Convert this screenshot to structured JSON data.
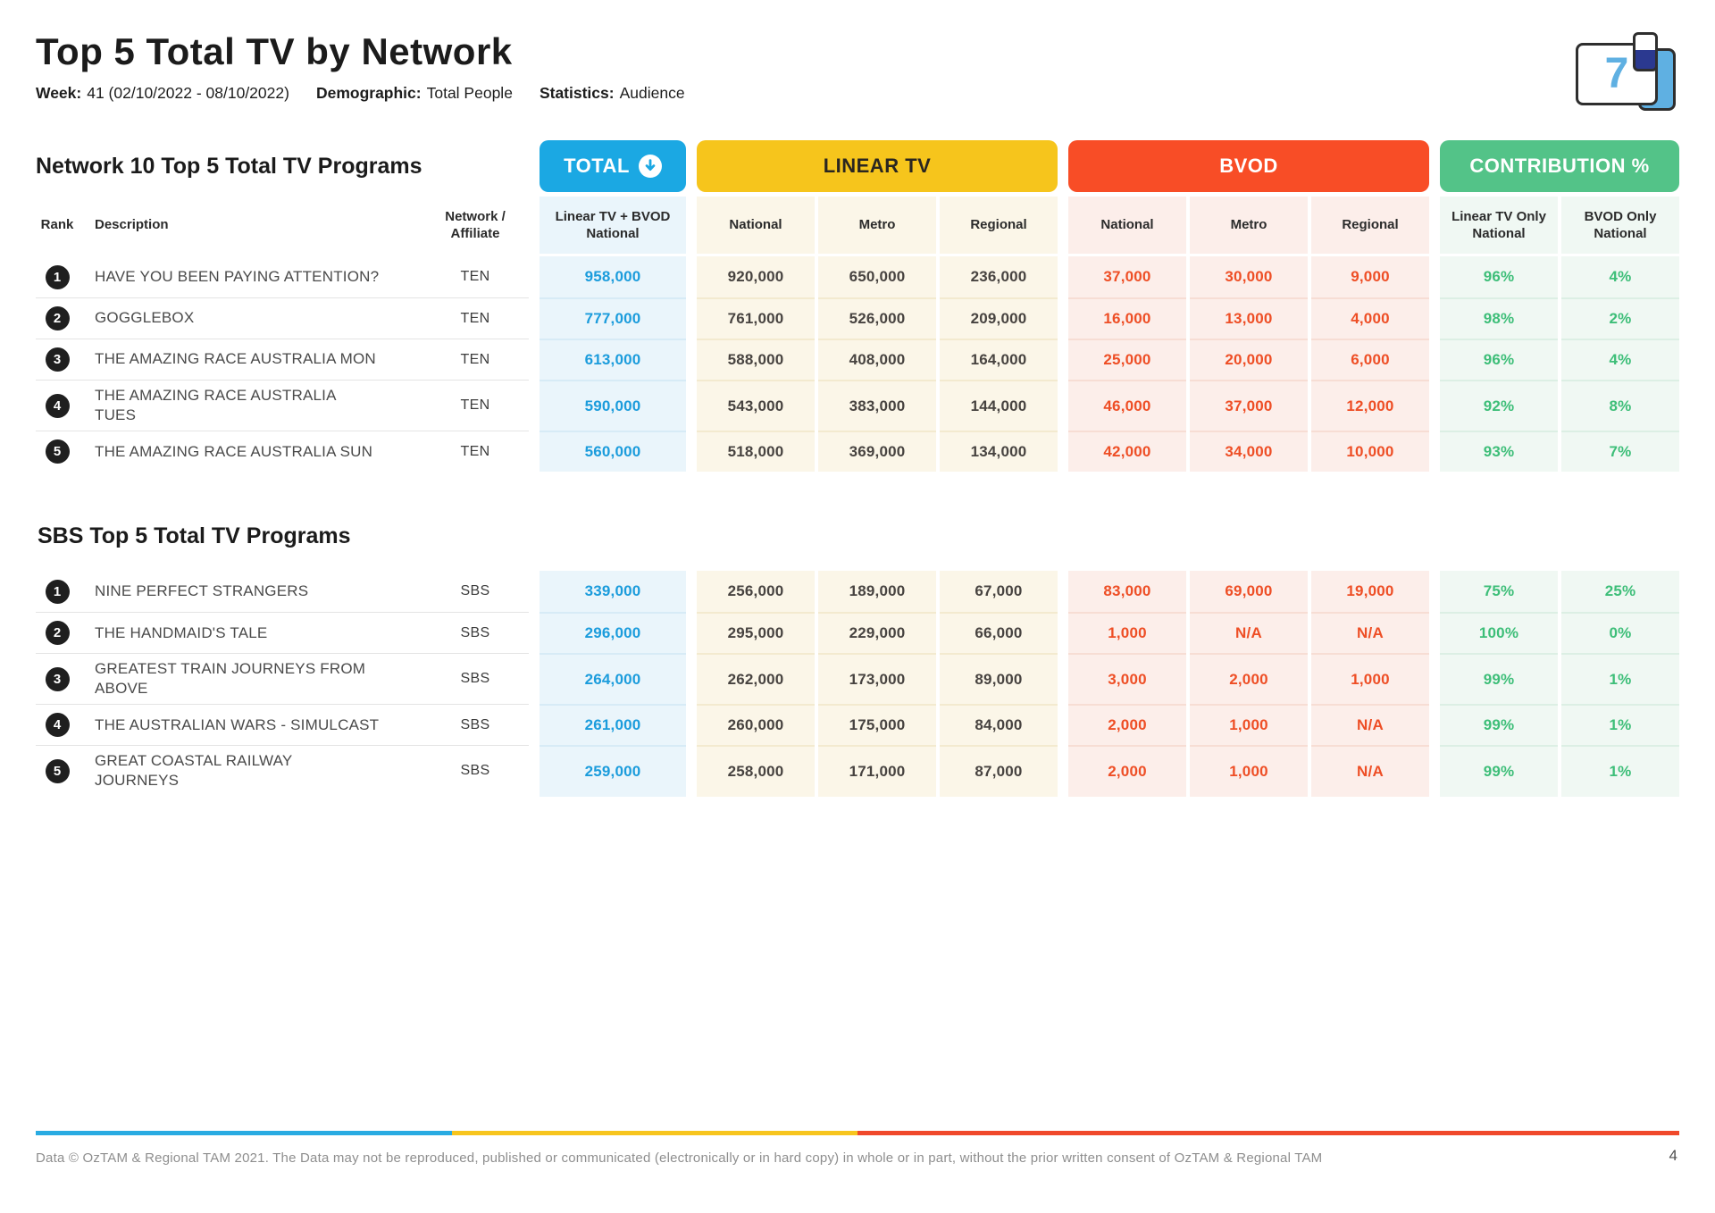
{
  "page": {
    "title": "Top 5 Total TV by Network",
    "meta": [
      {
        "label": "Week:",
        "value": "41 (02/10/2022 - 08/10/2022)"
      },
      {
        "label": "Demographic:",
        "value": "Total People"
      },
      {
        "label": "Statistics:",
        "value": "Audience"
      }
    ],
    "logo_digit": "7",
    "footer": "Data © OzTAM & Regional TAM 2021. The Data may not be reproduced, published or communicated (electronically or in hard copy) in whole or in part, without the prior written consent of OzTAM & Regional TAM",
    "page_number": "4"
  },
  "header_columns": {
    "rank": "Rank",
    "description": "Description",
    "network": "Network / Affiliate",
    "groups": {
      "total": "TOTAL",
      "linear": "LINEAR TV",
      "bvod": "BVOD",
      "contribution": "CONTRIBUTION %"
    },
    "total_sub": "Linear TV + BVOD National",
    "linear_subs": [
      "National",
      "Metro",
      "Regional"
    ],
    "bvod_subs": [
      "National",
      "Metro",
      "Regional"
    ],
    "contribution_subs": [
      "Linear TV Only National",
      "BVOD Only National"
    ]
  },
  "tables": [
    {
      "title": "Network 10 Top 5 Total TV Programs",
      "rows": [
        {
          "rank": "1",
          "description": "HAVE YOU BEEN PAYING ATTENTION?",
          "network": "TEN",
          "total": "958,000",
          "linear": [
            "920,000",
            "650,000",
            "236,000"
          ],
          "bvod": [
            "37,000",
            "30,000",
            "9,000"
          ],
          "contribution": [
            "96%",
            "4%"
          ]
        },
        {
          "rank": "2",
          "description": "GOGGLEBOX",
          "network": "TEN",
          "total": "777,000",
          "linear": [
            "761,000",
            "526,000",
            "209,000"
          ],
          "bvod": [
            "16,000",
            "13,000",
            "4,000"
          ],
          "contribution": [
            "98%",
            "2%"
          ]
        },
        {
          "rank": "3",
          "description": "THE AMAZING RACE AUSTRALIA MON",
          "network": "TEN",
          "total": "613,000",
          "linear": [
            "588,000",
            "408,000",
            "164,000"
          ],
          "bvod": [
            "25,000",
            "20,000",
            "6,000"
          ],
          "contribution": [
            "96%",
            "4%"
          ]
        },
        {
          "rank": "4",
          "description": "THE AMAZING RACE AUSTRALIA TUES",
          "network": "TEN",
          "total": "590,000",
          "linear": [
            "543,000",
            "383,000",
            "144,000"
          ],
          "bvod": [
            "46,000",
            "37,000",
            "12,000"
          ],
          "contribution": [
            "92%",
            "8%"
          ]
        },
        {
          "rank": "5",
          "description": "THE AMAZING RACE AUSTRALIA SUN",
          "network": "TEN",
          "total": "560,000",
          "linear": [
            "518,000",
            "369,000",
            "134,000"
          ],
          "bvod": [
            "42,000",
            "34,000",
            "10,000"
          ],
          "contribution": [
            "93%",
            "7%"
          ]
        }
      ]
    },
    {
      "title": "SBS Top 5 Total TV Programs",
      "rows": [
        {
          "rank": "1",
          "description": "NINE PERFECT STRANGERS",
          "network": "SBS",
          "total": "339,000",
          "linear": [
            "256,000",
            "189,000",
            "67,000"
          ],
          "bvod": [
            "83,000",
            "69,000",
            "19,000"
          ],
          "contribution": [
            "75%",
            "25%"
          ]
        },
        {
          "rank": "2",
          "description": "THE HANDMAID'S TALE",
          "network": "SBS",
          "total": "296,000",
          "linear": [
            "295,000",
            "229,000",
            "66,000"
          ],
          "bvod": [
            "1,000",
            "N/A",
            "N/A"
          ],
          "contribution": [
            "100%",
            "0%"
          ]
        },
        {
          "rank": "3",
          "description": "GREATEST TRAIN JOURNEYS FROM ABOVE",
          "network": "SBS",
          "total": "264,000",
          "linear": [
            "262,000",
            "173,000",
            "89,000"
          ],
          "bvod": [
            "3,000",
            "2,000",
            "1,000"
          ],
          "contribution": [
            "99%",
            "1%"
          ]
        },
        {
          "rank": "4",
          "description": "THE AUSTRALIAN WARS - SIMULCAST",
          "network": "SBS",
          "total": "261,000",
          "linear": [
            "260,000",
            "175,000",
            "84,000"
          ],
          "bvod": [
            "2,000",
            "1,000",
            "N/A"
          ],
          "contribution": [
            "99%",
            "1%"
          ]
        },
        {
          "rank": "5",
          "description": "GREAT COASTAL RAILWAY JOURNEYS",
          "network": "SBS",
          "total": "259,000",
          "linear": [
            "258,000",
            "171,000",
            "87,000"
          ],
          "bvod": [
            "2,000",
            "1,000",
            "N/A"
          ],
          "contribution": [
            "99%",
            "1%"
          ]
        }
      ]
    }
  ],
  "colors": {
    "total": "#1BA8E3",
    "total-text": "#1B9CDC",
    "total-bg": "#EAF5FB",
    "total-sep": "#D7EBF6",
    "linear": "#F6C51C",
    "linear-text": "#474340",
    "linear-bg": "#FBF6E8",
    "linear-sep": "#F3EACF",
    "bvod": "#F84D26",
    "bvod-text": "#EE4E25",
    "bvod-bg": "#FCEEEA",
    "bvod-sep": "#F7DDD4",
    "contrib": "#53C388",
    "contrib-text": "#3DBE78",
    "contrib-bg": "#F0F8F3",
    "contrib-sep": "#DCEFE4",
    "divider-blue": "#29ABE2",
    "divider-yellow": "#F7C51E",
    "divider-red": "#F0492B",
    "badge": "#1F1F1F",
    "logo-blue": "#5FB0E2",
    "logo-navy": "#2B3990"
  }
}
